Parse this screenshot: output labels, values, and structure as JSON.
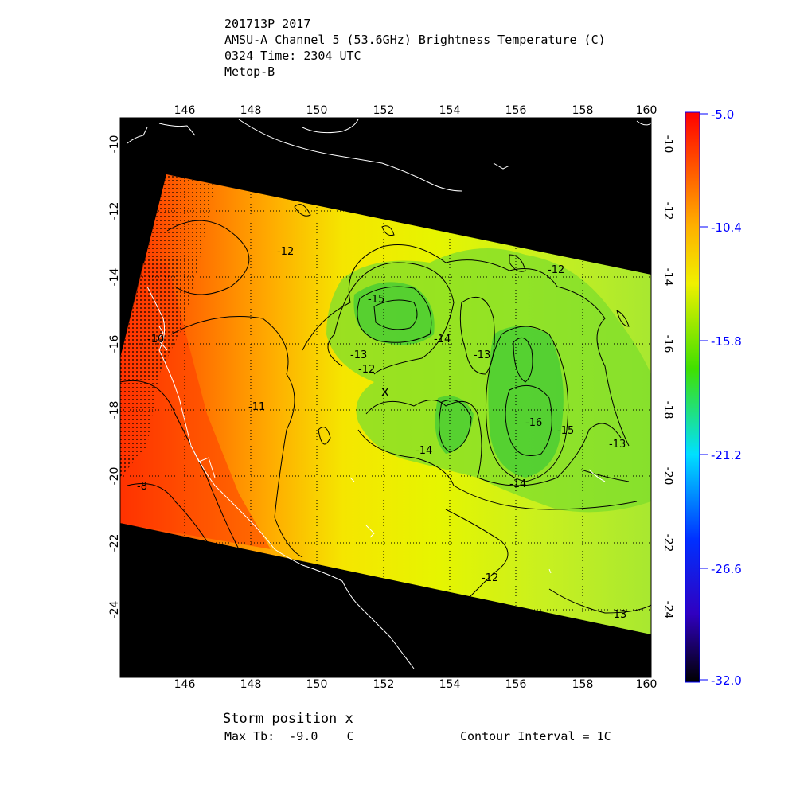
{
  "header": {
    "line1": "201713P 2017",
    "line2": "AMSU-A Channel 5 (53.6GHz) Brightness Temperature (C)",
    "line3": "0324 Time: 2304 UTC",
    "line4": "Metop-B"
  },
  "map": {
    "lon_labels": [
      "146",
      "148",
      "150",
      "152",
      "154",
      "156",
      "158",
      "160"
    ],
    "lat_labels": [
      "-10",
      "-12",
      "-14",
      "-16",
      "-18",
      "-20",
      "-22",
      "-24"
    ],
    "contour_labels": [
      "-12",
      "-12",
      "-12",
      "-13",
      "-13",
      "-13",
      "-14",
      "-14",
      "-14",
      "-15",
      "-15",
      "-16",
      "-11",
      "-10",
      "-8",
      "-12",
      "-13"
    ],
    "storm_marker": "x",
    "background_color": "#000000",
    "warm_color": "#ff2a00",
    "mid_color": "#f2f200",
    "cool_color": "#3cd01e"
  },
  "colorbar": {
    "ticks": [
      "-5.0",
      "-10.4",
      "-15.8",
      "-21.2",
      "-26.6",
      "-32.0"
    ],
    "tick_color": "#0000ff"
  },
  "footer": {
    "storm_position": "Storm position x",
    "max_tb_label": "Max Tb:  -9.0    C",
    "contour_interval": "Contour Interval = 1C"
  }
}
